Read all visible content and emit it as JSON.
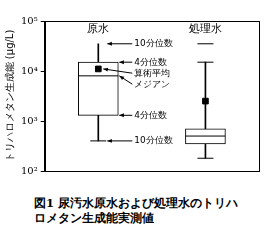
{
  "chart_data": {
    "type": "boxplot",
    "title": "図1 尿汚水原水および処理水のトリハロメタン生成能実測値",
    "y_label": "トリハロメタン生成能 (μg/L)",
    "categories": [
      "原水",
      "処理水"
    ],
    "stats": {
      "whisker_low": [
        400,
        180
      ],
      "q1": [
        1300,
        350
      ],
      "median": [
        8000,
        500
      ],
      "mean": [
        11000,
        2500
      ],
      "q3": [
        15000,
        700
      ],
      "whisker_high": [
        35000,
        15000
      ]
    },
    "annotations": {
      "whisker_high": "10分位数",
      "q3": "4分位数",
      "mean": "算術平均",
      "median": "メジアン",
      "q1": "4分位数",
      "whisker_low": "10分位数"
    },
    "color": "#000000",
    "log": "y",
    "grid": false,
    "ylim": [
      100,
      100000
    ],
    "yticks": [
      {
        "value": 100,
        "label": "10²"
      },
      {
        "value": 1000,
        "label": "10³"
      },
      {
        "value": 10000,
        "label": "10⁴"
      },
      {
        "value": 100000,
        "label": "10⁵"
      }
    ]
  }
}
